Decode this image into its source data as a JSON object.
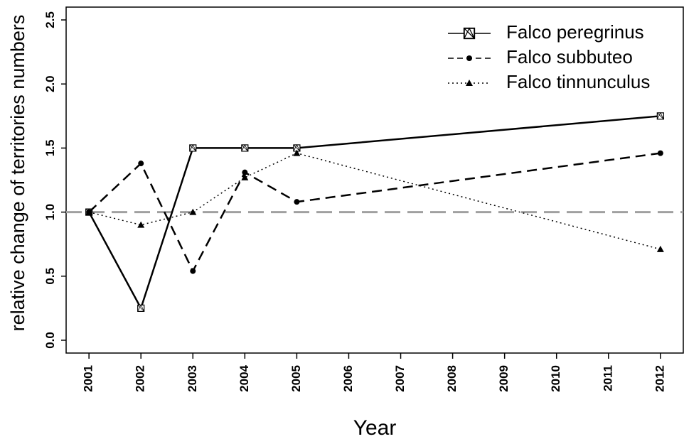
{
  "chart_data": {
    "type": "line",
    "x_label": "Year",
    "y_label": "relative change of territories numbers",
    "x": [
      2001,
      2002,
      2003,
      2004,
      2005,
      2012
    ],
    "series": [
      {
        "name": "Falco peregrinus",
        "color": "#000000",
        "line_style": "solid",
        "marker": "square",
        "values": [
          1.0,
          0.25,
          1.5,
          1.5,
          1.5,
          1.75
        ]
      },
      {
        "name": "Falco subbuteo",
        "color": "#000000",
        "line_style": "dashed",
        "marker": "circle",
        "values": [
          1.0,
          1.38,
          0.54,
          1.31,
          1.08,
          1.46
        ]
      },
      {
        "name": "Falco tinnunculus",
        "color": "#000000",
        "line_style": "dotted",
        "marker": "triangle",
        "values": [
          1.0,
          0.9,
          1.0,
          1.27,
          1.46,
          0.71
        ]
      }
    ],
    "reference_line": {
      "value": 1,
      "color": "#a0a0a0"
    },
    "xlim": [
      2000.56,
      2012.44
    ],
    "xticks": [
      2001,
      2002,
      2003,
      2004,
      2005,
      2006,
      2007,
      2008,
      2009,
      2010,
      2011,
      2012
    ],
    "ylim": [
      -0.1,
      2.6
    ],
    "yticks": [
      {
        "value": 0,
        "label": "0.0"
      },
      0.5,
      {
        "value": 1,
        "label": "1.0"
      },
      1.5,
      {
        "value": 2,
        "label": "2.0"
      },
      2.5
    ],
    "legend": "top-right"
  }
}
